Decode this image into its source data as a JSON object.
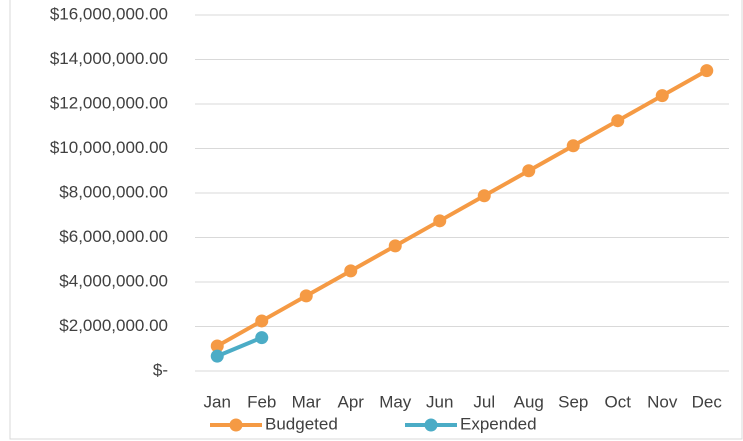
{
  "chart_data": {
    "type": "line",
    "categories": [
      "Jan",
      "Feb",
      "Mar",
      "Apr",
      "May",
      "Jun",
      "Jul",
      "Aug",
      "Sep",
      "Oct",
      "Nov",
      "Dec"
    ],
    "series": [
      {
        "name": "Budgeted",
        "color": "#f59a44",
        "values": [
          1125000,
          2250000,
          3375000,
          4500000,
          5625000,
          6750000,
          7875000,
          9000000,
          10125000,
          11250000,
          12375000,
          13500000
        ]
      },
      {
        "name": "Expended",
        "color": "#4bacc6",
        "values": [
          670000,
          1500000,
          null,
          null,
          null,
          null,
          null,
          null,
          null,
          null,
          null,
          null
        ]
      }
    ],
    "ylim": [
      0,
      16000000
    ],
    "yticks": [
      {
        "value": 0,
        "label": "$-"
      },
      {
        "value": 2000000,
        "label": "$2,000,000.00"
      },
      {
        "value": 4000000,
        "label": "$4,000,000.00"
      },
      {
        "value": 6000000,
        "label": "$6,000,000.00"
      },
      {
        "value": 8000000,
        "label": "$8,000,000.00"
      },
      {
        "value": 10000000,
        "label": "$10,000,000.00"
      },
      {
        "value": 12000000,
        "label": "$12,000,000.00"
      },
      {
        "value": 14000000,
        "label": "$14,000,000.00"
      },
      {
        "value": 16000000,
        "label": "$16,000,000.00"
      }
    ],
    "grid": true,
    "legend": "bottom"
  }
}
